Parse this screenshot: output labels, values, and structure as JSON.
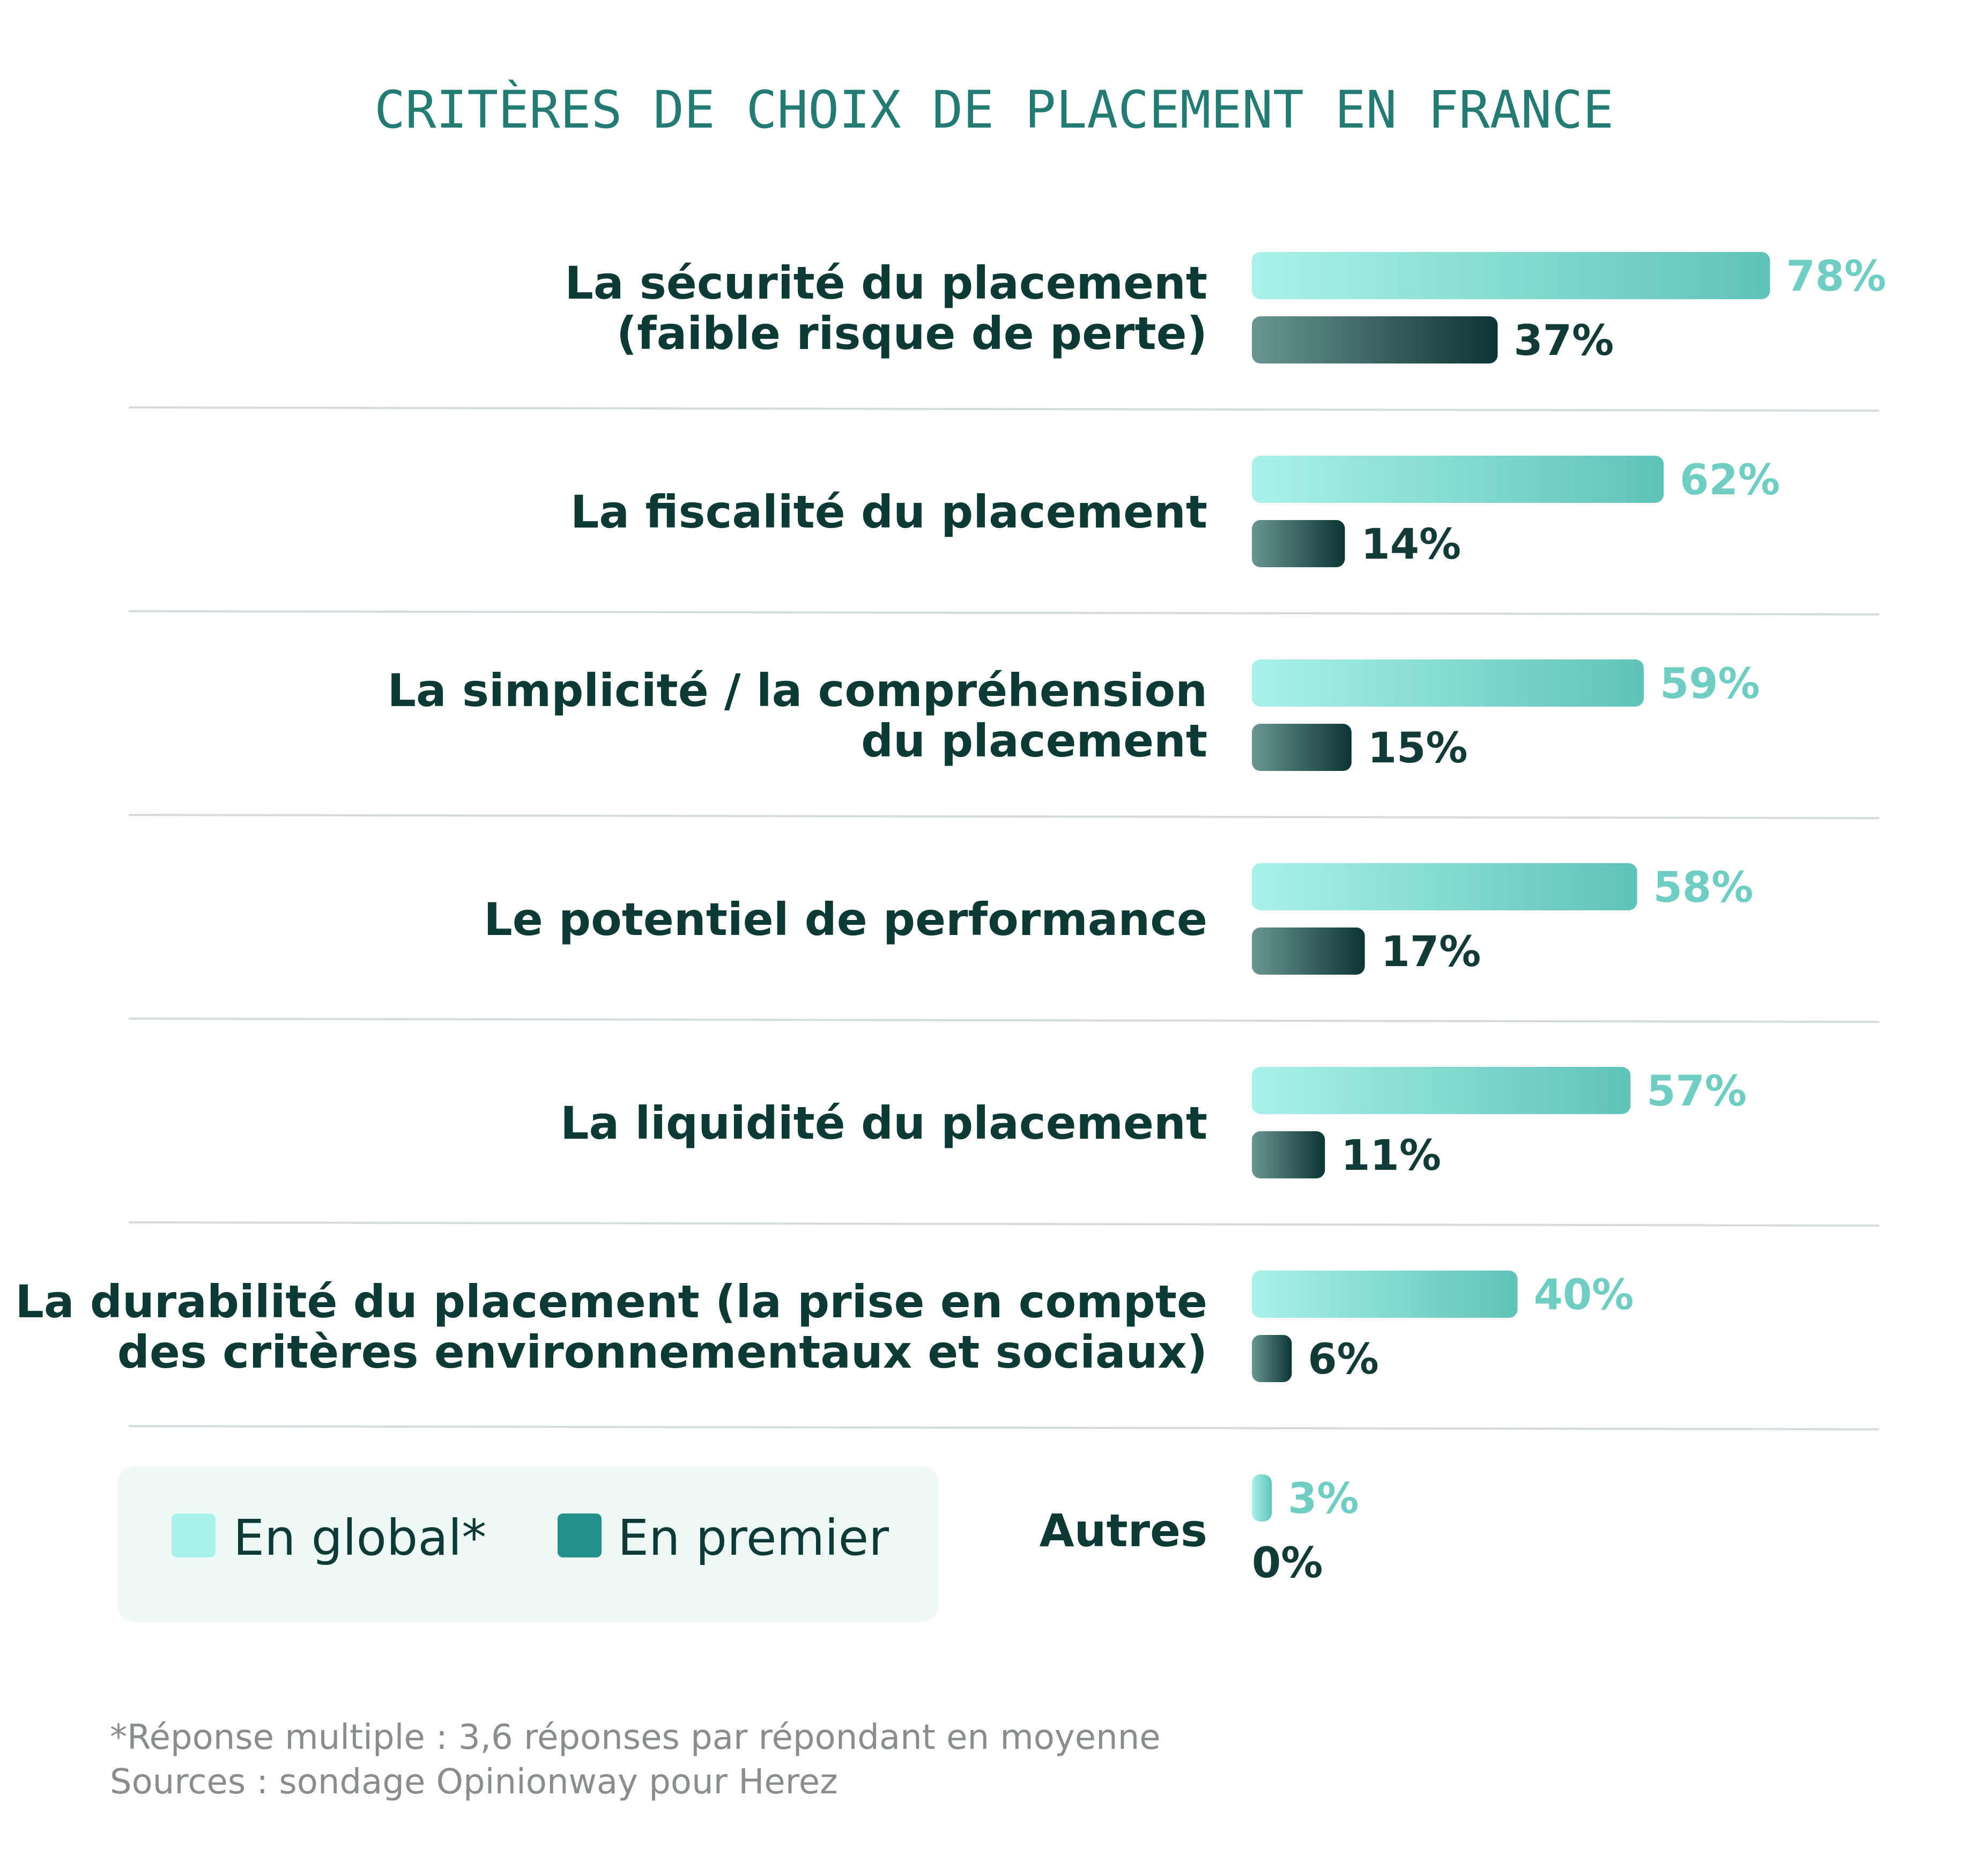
{
  "chart_data": {
    "type": "bar",
    "orientation": "horizontal",
    "title": "CRITÈRES DE CHOIX DE PLACEMENT EN FRANCE",
    "categories": [
      [
        "La sécurité du placement",
        "(faible risque de perte)"
      ],
      [
        "La fiscalité du placement"
      ],
      [
        "La simplicité / la compréhension",
        "du placement"
      ],
      [
        "Le potentiel de performance"
      ],
      [
        "La liquidité du placement"
      ],
      [
        "La durabilité du placement (la prise en compte",
        "des critères environnementaux et sociaux)"
      ],
      [
        "Autres"
      ]
    ],
    "series": [
      {
        "name": "En global*",
        "values": [
          78,
          62,
          59,
          58,
          57,
          40,
          3
        ],
        "labels": [
          "78%",
          "62%",
          "59%",
          "58%",
          "57%",
          "40%",
          "3%"
        ]
      },
      {
        "name": "En premier",
        "values": [
          37,
          14,
          15,
          17,
          11,
          6,
          0
        ],
        "labels": [
          "37%",
          "14%",
          "15%",
          "17%",
          "11%",
          "6%",
          "0%"
        ]
      }
    ],
    "xlim": [
      0,
      100
    ],
    "grid": false,
    "legend": "bottom-left"
  },
  "colors": {
    "title": "#237b74",
    "category_text": "#0e3a36",
    "global_light": "#a9f2ea",
    "global_dark": "#5fc3b9",
    "global_label": "#6fcdc3",
    "premier_light": "#6a9692",
    "premier_dark": "#0b3533",
    "premier_label": "#123b38",
    "legend_global": "#a9f2ea",
    "legend_premier": "#26908a",
    "legend_bg": "#eef8f7",
    "divider": "#d5dbdb",
    "note": "#8a8d8d"
  },
  "footnote": [
    "*Réponse multiple : 3,6 réponses par répondant en moyenne",
    "Sources : sondage Opinionway pour Herez"
  ]
}
